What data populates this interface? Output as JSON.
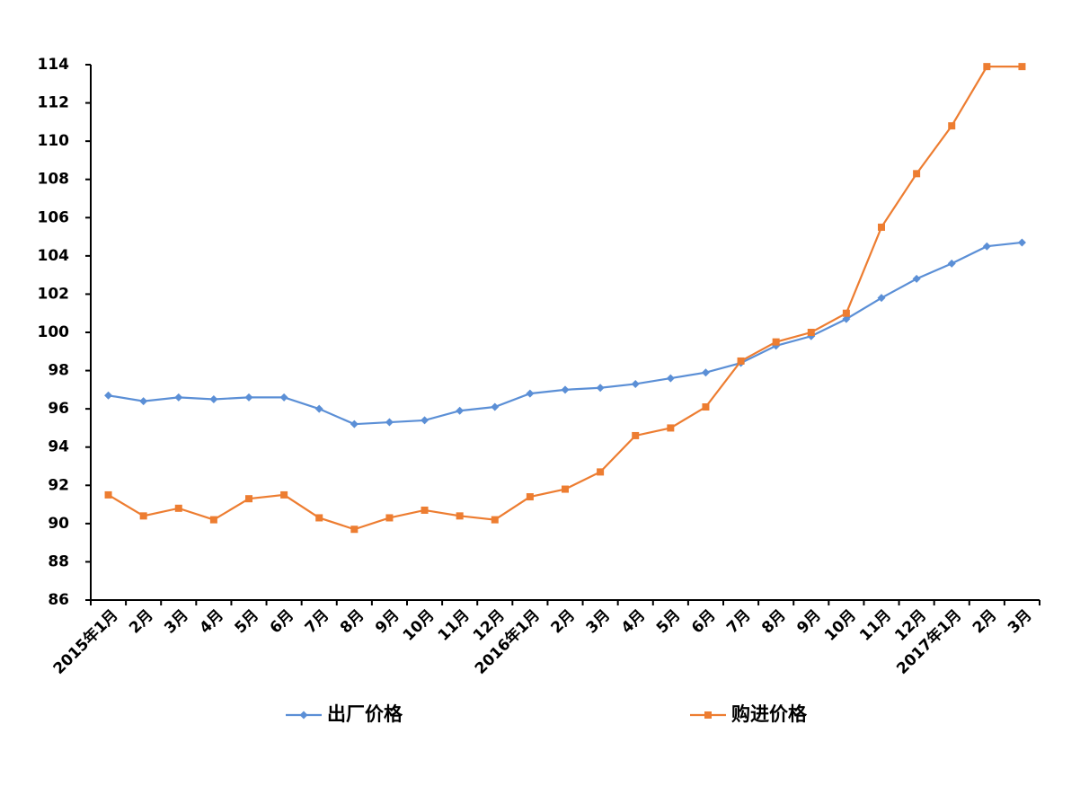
{
  "chart_data": {
    "type": "line",
    "categories": [
      "2015年1月",
      "2月",
      "3月",
      "4月",
      "5月",
      "6月",
      "7月",
      "8月",
      "9月",
      "10月",
      "11月",
      "12月",
      "2016年1月",
      "2月",
      "3月",
      "4月",
      "5月",
      "6月",
      "7月",
      "8月",
      "9月",
      "10月",
      "11月",
      "12月",
      "2017年1月",
      "2月",
      "3月"
    ],
    "series": [
      {
        "name": "出厂价格",
        "color": "#5b8fd6",
        "marker": "diamond",
        "values": [
          96.7,
          96.4,
          96.6,
          96.5,
          96.6,
          96.6,
          96.0,
          95.2,
          95.3,
          95.4,
          95.9,
          96.1,
          96.8,
          97.0,
          97.1,
          97.3,
          97.6,
          97.9,
          98.4,
          99.3,
          99.8,
          100.7,
          101.8,
          102.8,
          103.6,
          104.5,
          104.7
        ]
      },
      {
        "name": "购进价格",
        "color": "#ed7d31",
        "marker": "square",
        "values": [
          91.5,
          90.4,
          90.8,
          90.2,
          91.3,
          91.5,
          90.3,
          89.7,
          90.3,
          90.7,
          90.4,
          90.2,
          91.4,
          91.8,
          92.7,
          94.6,
          95.0,
          96.1,
          98.5,
          99.5,
          100.0,
          101.0,
          105.5,
          108.3,
          110.8,
          113.9,
          113.9
        ]
      }
    ],
    "ylim": [
      86,
      114
    ],
    "yticks": [
      86,
      88,
      90,
      92,
      94,
      96,
      98,
      100,
      102,
      104,
      106,
      108,
      110,
      112,
      114
    ],
    "grid": false,
    "legend": "bottom"
  }
}
